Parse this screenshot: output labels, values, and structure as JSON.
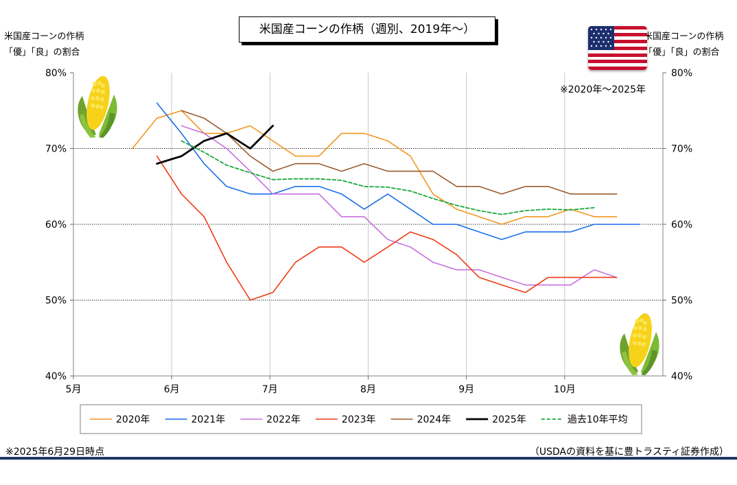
{
  "header": {
    "title": "米国産コーンの作柄（週別、2019年～）",
    "left_axis_title": [
      "米国産コーンの作柄",
      "「優」「良」の割合"
    ],
    "right_axis_title": [
      "米国産コーンの作柄",
      "「優」「良」の割合"
    ],
    "range_note": "※2020年～2025年"
  },
  "footer": {
    "as_of": "※2025年6月29日時点",
    "source": "（USDAの資料を基に豊トラスティ証券作成）"
  },
  "chart_data": {
    "type": "line",
    "title": "米国産コーンの作柄（週別、2019年～）",
    "ylabel": "米国産コーンの作柄「優」「良」の割合",
    "ylim": [
      40,
      80
    ],
    "y_ticks": [
      "40%",
      "50%",
      "60%",
      "70%",
      "80%"
    ],
    "x_axis": {
      "start_month": 5,
      "end_month": 11
    },
    "x_ticks": [
      "5月",
      "6月",
      "7月",
      "8月",
      "9月",
      "10月"
    ],
    "grid": true,
    "legend_position": "bottom",
    "series": [
      {
        "name": "2020年",
        "color": "#f2961e",
        "dash": false,
        "width": 1.6,
        "x": [
          5.6,
          5.85,
          6.1,
          6.33,
          6.56,
          6.8,
          7.03,
          7.26,
          7.5,
          7.73,
          7.96,
          8.2,
          8.43,
          8.66,
          8.9,
          9.13,
          9.36,
          9.6,
          9.83,
          10.06,
          10.3,
          10.53
        ],
        "y": [
          70,
          74,
          75,
          72,
          72,
          73,
          71,
          69,
          69,
          72,
          72,
          71,
          69,
          64,
          62,
          61,
          60,
          61,
          61,
          62,
          61,
          61
        ]
      },
      {
        "name": "2021年",
        "color": "#1a6fe8",
        "dash": false,
        "width": 1.6,
        "x": [
          5.85,
          6.1,
          6.33,
          6.56,
          6.8,
          7.03,
          7.26,
          7.5,
          7.73,
          7.96,
          8.2,
          8.43,
          8.66,
          8.9,
          9.13,
          9.36,
          9.6,
          9.83,
          10.06,
          10.3,
          10.53,
          10.76
        ],
        "y": [
          76,
          72,
          68,
          65,
          64,
          64,
          65,
          65,
          64,
          62,
          64,
          62,
          60,
          60,
          59,
          58,
          59,
          59,
          59,
          60,
          60,
          60
        ]
      },
      {
        "name": "2022年",
        "color": "#c86ee0",
        "dash": false,
        "width": 1.6,
        "x": [
          6.1,
          6.33,
          6.56,
          6.8,
          7.03,
          7.26,
          7.5,
          7.73,
          7.96,
          8.2,
          8.43,
          8.66,
          8.9,
          9.13,
          9.36,
          9.6,
          9.83,
          10.06,
          10.3,
          10.53
        ],
        "y": [
          73,
          72,
          70,
          67,
          64,
          64,
          64,
          61,
          61,
          58,
          57,
          55,
          54,
          54,
          53,
          52,
          52,
          52,
          54,
          53
        ]
      },
      {
        "name": "2023年",
        "color": "#ee3a14",
        "dash": false,
        "width": 1.6,
        "x": [
          5.85,
          6.1,
          6.33,
          6.56,
          6.8,
          7.03,
          7.26,
          7.5,
          7.73,
          7.96,
          8.2,
          8.43,
          8.66,
          8.9,
          9.13,
          9.36,
          9.6,
          9.83,
          10.06,
          10.3,
          10.53
        ],
        "y": [
          69,
          64,
          61,
          55,
          50,
          51,
          55,
          57,
          57,
          55,
          57,
          59,
          58,
          56,
          53,
          52,
          51,
          53,
          53,
          53,
          53
        ]
      },
      {
        "name": "2024年",
        "color": "#9b5a2c",
        "dash": false,
        "width": 1.6,
        "x": [
          6.1,
          6.33,
          6.56,
          6.8,
          7.03,
          7.26,
          7.5,
          7.73,
          7.96,
          8.2,
          8.43,
          8.66,
          8.9,
          9.13,
          9.36,
          9.6,
          9.83,
          10.06,
          10.3,
          10.53
        ],
        "y": [
          75,
          74,
          72,
          69,
          67,
          68,
          68,
          67,
          68,
          67,
          67,
          67,
          65,
          65,
          64,
          65,
          65,
          64,
          64,
          64
        ]
      },
      {
        "name": "2025年",
        "color": "#000000",
        "dash": false,
        "width": 2.8,
        "x": [
          5.85,
          6.1,
          6.33,
          6.56,
          6.8,
          7.03
        ],
        "y": [
          68,
          69,
          71,
          72,
          70,
          73
        ]
      },
      {
        "name": "過去10年平均",
        "color": "#1aa83a",
        "dash": true,
        "width": 1.8,
        "x": [
          6.1,
          6.33,
          6.56,
          6.8,
          7.03,
          7.26,
          7.5,
          7.73,
          7.96,
          8.2,
          8.43,
          8.66,
          8.9,
          9.13,
          9.36,
          9.6,
          9.83,
          10.06,
          10.3
        ],
        "y": [
          71,
          69.5,
          67.8,
          66.8,
          65.9,
          66,
          66,
          65.8,
          65,
          64.9,
          64.4,
          63.4,
          62.5,
          61.8,
          61.3,
          61.8,
          62,
          61.9,
          62.2
        ]
      }
    ]
  }
}
